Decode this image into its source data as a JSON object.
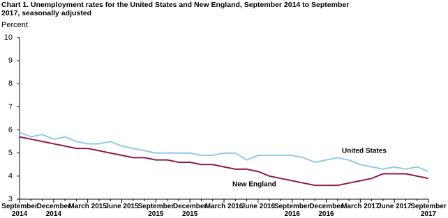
{
  "chart_data": {
    "type": "line",
    "title": "Chart 1. Unemployment rates for the United States and New England, September 2014 to September 2017, seasonally adjusted",
    "y_label": "Percent",
    "categories": [
      "September 2014",
      null,
      null,
      "December 2014",
      null,
      null,
      "March 2015",
      null,
      null,
      "June 2015",
      null,
      null,
      "September 2015",
      null,
      null,
      "December 2015",
      null,
      null,
      "March 2016",
      null,
      null,
      "June 2016",
      null,
      null,
      "September 2016",
      null,
      null,
      "December 2016",
      null,
      null,
      "March 2017",
      null,
      null,
      "June 2017",
      null,
      null,
      "September 2017"
    ],
    "series": [
      {
        "name": "United States",
        "color": "#92c9ee",
        "values": [
          5.9,
          5.7,
          5.8,
          5.6,
          5.7,
          5.5,
          5.4,
          5.4,
          5.5,
          5.3,
          5.2,
          5.1,
          5.0,
          5.0,
          5.0,
          5.0,
          4.9,
          4.9,
          5.0,
          5.0,
          4.7,
          4.9,
          4.9,
          4.9,
          4.9,
          4.8,
          4.6,
          4.7,
          4.8,
          4.7,
          4.5,
          4.4,
          4.3,
          4.4,
          4.3,
          4.4,
          4.2
        ]
      },
      {
        "name": "New England",
        "color": "#8c1c4c",
        "values": [
          5.7,
          5.6,
          5.5,
          5.4,
          5.3,
          5.2,
          5.2,
          5.1,
          5.0,
          4.9,
          4.8,
          4.8,
          4.7,
          4.7,
          4.6,
          4.6,
          4.5,
          4.5,
          4.4,
          4.3,
          4.3,
          4.2,
          4.0,
          3.9,
          3.8,
          3.7,
          3.6,
          3.6,
          3.6,
          3.7,
          3.8,
          3.9,
          4.1,
          4.1,
          4.1,
          4.0,
          3.9
        ]
      }
    ],
    "ylim": [
      3,
      10
    ],
    "yticks": [
      3,
      4,
      5,
      6,
      7,
      8,
      9,
      10
    ]
  }
}
